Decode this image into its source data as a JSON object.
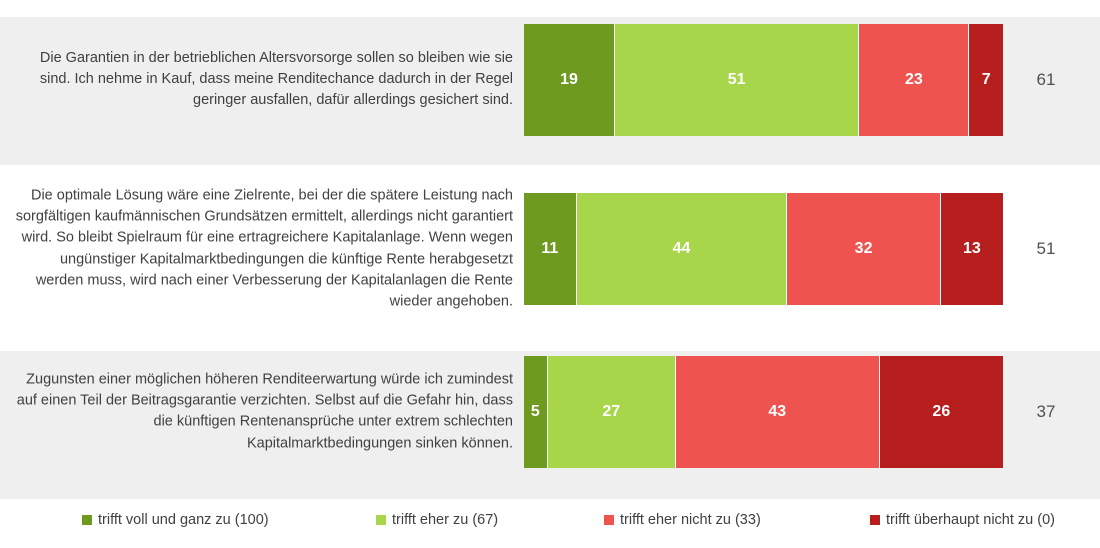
{
  "colors": {
    "trifft_voll": "#6e9a1f",
    "trifft_eher": "#a8d64a",
    "trifft_eher_nicht": "#ef5350",
    "trifft_ueberhaupt_nicht": "#b71f1f"
  },
  "chart_data": {
    "type": "bar",
    "orientation": "horizontal",
    "stacked": true,
    "normalized": true,
    "categories": [
      "Die Garantien in der betrieblichen Altersvorsorge sollen so bleiben wie sie sind. Ich nehme in Kauf, dass meine Renditechance dadurch in der Regel geringer ausfallen, dafür allerdings gesichert sind.",
      "Die optimale Lösung wäre eine Zielrente, bei der die spätere Leistung nach sorgfältigen kaufmännischen Grundsätzen ermittelt, allerdings nicht garantiert wird. So bleibt Spielraum für eine ertragreichere Kapitalanlage. Wenn wegen ungünstiger Kapitalmarktbedingungen die künftige Rente herabgesetzt werden muss, wird nach einer Verbesserung der Kapitalanlagen die Rente wieder angehoben.",
      "Zugunsten einer möglichen höheren Renditeerwartung würde ich zumindest auf einen Teil der Beitragsgarantie verzichten. Selbst auf die Gefahr hin, dass die künftigen Rentenansprüche unter extrem schlechten Kapitalmarktbedingungen sinken können."
    ],
    "series": [
      {
        "name": "trifft voll und ganz zu (100)",
        "values": [
          19,
          11,
          5
        ]
      },
      {
        "name": "trifft eher zu (67)",
        "values": [
          51,
          44,
          27
        ]
      },
      {
        "name": "trifft eher nicht zu (33)",
        "values": [
          23,
          32,
          43
        ]
      },
      {
        "name": "trifft überhaupt nicht zu (0)",
        "values": [
          7,
          13,
          26
        ]
      }
    ],
    "scores": [
      "61",
      "51",
      "37"
    ],
    "legend_position": "bottom"
  }
}
